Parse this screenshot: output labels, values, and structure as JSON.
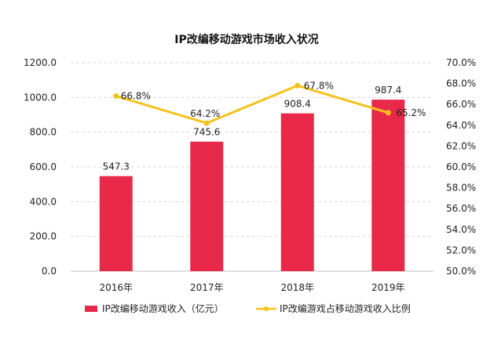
{
  "chart_data": {
    "type": "bar",
    "title": "IP改编移动游戏市场收入状况",
    "categories": [
      "2016年",
      "2017年",
      "2018年",
      "2019年"
    ],
    "series": [
      {
        "name": "IP改编移动游戏收入（亿元）",
        "type": "bar",
        "axis": "left",
        "values": [
          547.3,
          745.6,
          908.4,
          987.4
        ],
        "labels": [
          "547.3",
          "745.6",
          "908.4",
          "987.4"
        ]
      },
      {
        "name": "IP改编游戏占移动游戏收入比例",
        "type": "line",
        "axis": "right",
        "values": [
          66.8,
          64.2,
          67.8,
          65.2
        ],
        "labels": [
          "66.8%",
          "64.2%",
          "67.8%",
          "65.2%"
        ]
      }
    ],
    "y_left": {
      "min": 0,
      "max": 1200,
      "ticks": [
        0,
        200,
        400,
        600,
        800,
        1000,
        1200
      ],
      "tick_labels": [
        "0.0",
        "200.0",
        "400.0",
        "600.0",
        "800.0",
        "1000.0",
        "1200.0"
      ]
    },
    "y_right": {
      "min": 50,
      "max": 70,
      "ticks": [
        50,
        52,
        54,
        56,
        58,
        60,
        62,
        64,
        66,
        68,
        70
      ],
      "tick_labels": [
        "50.0%",
        "52.0%",
        "54.0%",
        "56.0%",
        "58.0%",
        "60.0%",
        "62.0%",
        "64.0%",
        "66.0%",
        "68.0%",
        "70.0%"
      ]
    },
    "grid": true,
    "legend_position": "bottom",
    "colors": {
      "bar": "#E9294A",
      "line": "#F5C21B",
      "grid": "#D9D9D9",
      "axis": "#BFBFBF"
    }
  }
}
